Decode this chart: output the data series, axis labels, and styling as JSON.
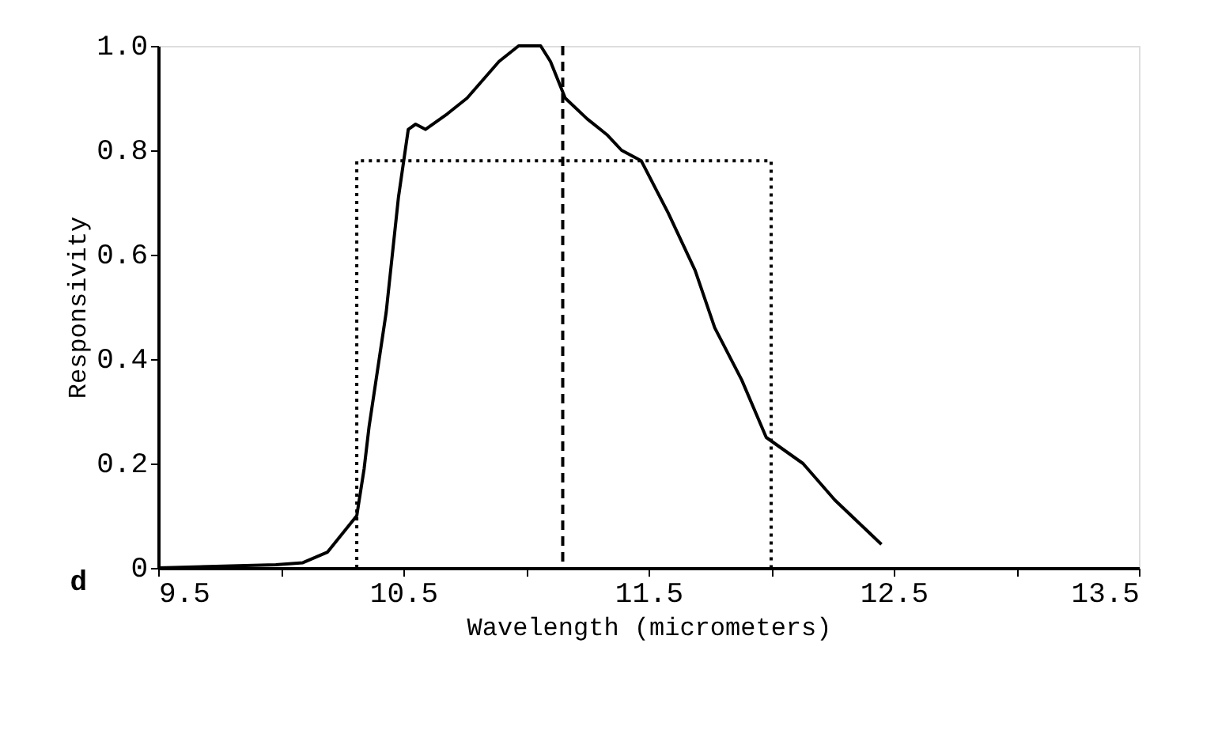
{
  "chart_data": {
    "type": "line",
    "xlabel": "Wavelength (micrometers)",
    "ylabel": "Responsivity",
    "xlim": [
      9.5,
      13.5
    ],
    "ylim": [
      0,
      1.0
    ],
    "xticks": [
      9.5,
      {
        "value": 10,
        "label": null
      },
      10.5,
      {
        "value": 11,
        "label": null
      },
      11.5,
      {
        "value": 12,
        "label": null
      },
      12.5,
      {
        "value": 13,
        "label": null
      },
      13.5
    ],
    "yticks": [
      0,
      0.2,
      0.4,
      0.6,
      0.8,
      {
        "value": 1,
        "label": "1.0"
      }
    ],
    "grid": false,
    "marker": "none",
    "series": [
      {
        "color": "#000000",
        "line_style": "solid",
        "x": [
          9.5,
          9.98,
          10.09,
          10.19,
          10.31,
          10.34,
          10.36,
          10.43,
          10.48,
          10.52,
          10.55,
          10.59,
          10.68,
          10.76,
          10.89,
          10.97,
          11.06,
          11.1,
          11.16,
          11.25,
          11.33,
          11.39,
          11.47,
          11.58,
          11.69,
          11.77,
          11.88,
          11.98,
          12.13,
          12.26,
          12.45
        ],
        "values": [
          0.0,
          0.006,
          0.01,
          0.03,
          0.1,
          0.19,
          0.27,
          0.49,
          0.71,
          0.84,
          0.85,
          0.84,
          0.87,
          0.9,
          0.97,
          1.0,
          1.0,
          0.97,
          0.9,
          0.86,
          0.83,
          0.8,
          0.78,
          0.68,
          0.57,
          0.46,
          0.36,
          0.25,
          0.2,
          0.13,
          0.045
        ]
      },
      {
        "color": "#000000",
        "line_style": "dotted",
        "x": [
          10.31,
          10.31,
          12.0,
          12.0
        ],
        "values": [
          0,
          0.78,
          0.78,
          0
        ]
      }
    ],
    "ref_lines": [
      {
        "axis": "x",
        "value": 11.15,
        "color": "#000000",
        "line_style": "dashed"
      }
    ],
    "annotations": [
      "d"
    ]
  }
}
